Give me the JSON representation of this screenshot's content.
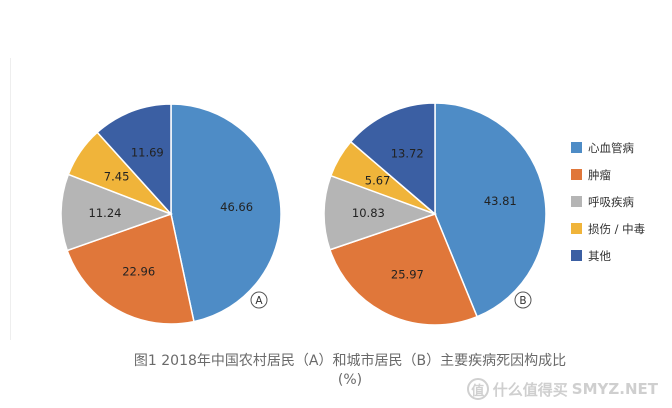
{
  "chart_data": [
    {
      "type": "pie",
      "marker": "A",
      "categories": [
        "心血管病",
        "肿瘤",
        "呼吸疾病",
        "损伤 / 中毒",
        "其他"
      ],
      "values": [
        46.66,
        22.96,
        11.24,
        7.45,
        11.69
      ],
      "value_labels": [
        "46.66",
        "22.96",
        "11.24",
        "7.45",
        "11.69"
      ]
    },
    {
      "type": "pie",
      "marker": "B",
      "categories": [
        "心血管病",
        "肿瘤",
        "呼吸疾病",
        "损伤 / 中毒",
        "其他"
      ],
      "values": [
        43.81,
        25.97,
        10.83,
        5.67,
        13.72
      ],
      "value_labels": [
        "43.81",
        "25.97",
        "10.83",
        "5.67",
        "13.72"
      ]
    }
  ],
  "legend": {
    "placement": "right",
    "items": [
      {
        "label": "心血管病",
        "color": "#4E8CC6"
      },
      {
        "label": "肿瘤",
        "color": "#E0773A"
      },
      {
        "label": "呼吸疾病",
        "color": "#B5B5B5"
      },
      {
        "label": "损伤 / 中毒",
        "color": "#F0B43A"
      },
      {
        "label": "其他",
        "color": "#3B5FA3"
      }
    ]
  },
  "caption": {
    "line1": "图1 2018年中国农村居民（A）和城市居民（B）主要疾病死因构成比",
    "line2": "(%)"
  },
  "watermark": {
    "badge": "值",
    "text": "什么值得买",
    "site": "SMYZ.NET"
  }
}
